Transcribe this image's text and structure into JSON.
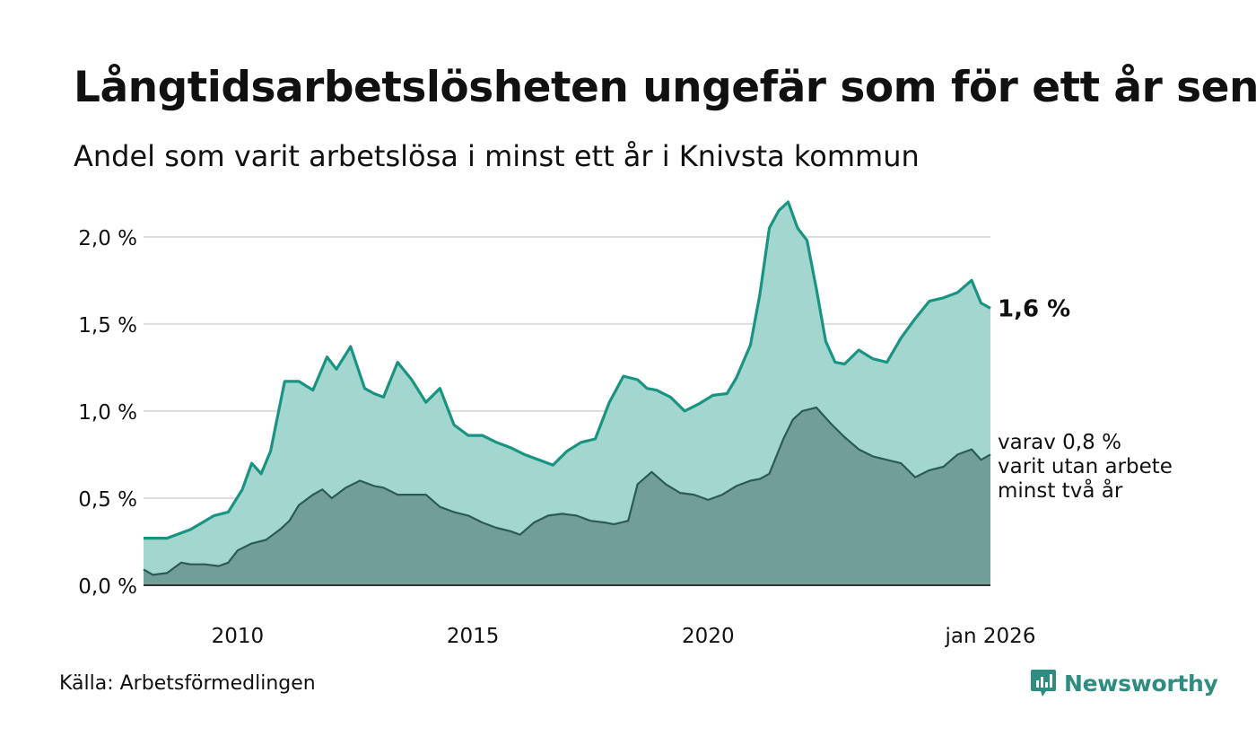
{
  "title": "Långtidsarbetslösheten ungefär som för ett år sen",
  "subtitle": "Andel som varit arbetslösa i minst ett år i Knivsta kommun",
  "source": "Källa: Arbetsförmedlingen",
  "brand": {
    "name": "Newsworthy",
    "icon": "newsworthy-logo-icon",
    "color": "#2f8c80"
  },
  "colors": {
    "series1_line": "#1a9482",
    "series1_fill": "#a3d6cf",
    "series2_line": "#2a5c55",
    "series2_fill": "#719f97",
    "grid": "#dddddd",
    "axis": "#333333"
  },
  "chart_data": {
    "type": "area",
    "title": "Långtidsarbetslösheten ungefär som för ett år sen",
    "xlabel": "",
    "ylabel": "",
    "ylim": [
      0,
      2.2
    ],
    "xlim": [
      2008.0,
      2026.0
    ],
    "grid": true,
    "y_ticks": [
      {
        "value": 0.0,
        "label": "0,0 %"
      },
      {
        "value": 0.5,
        "label": "0,5 %"
      },
      {
        "value": 1.0,
        "label": "1,0 %"
      },
      {
        "value": 1.5,
        "label": "1,5 %"
      },
      {
        "value": 2.0,
        "label": "2,0 %"
      }
    ],
    "x_ticks": [
      {
        "value": 2010,
        "label": "2010"
      },
      {
        "value": 2015,
        "label": "2015"
      },
      {
        "value": 2020,
        "label": "2020"
      },
      {
        "value": 2026,
        "label": "jan 2026"
      }
    ],
    "end_label": "1,6 %",
    "end_annotation": [
      "varav 0,8 %",
      "varit utan arbete",
      "minst två år"
    ],
    "series": [
      {
        "name": "Arbetslösa minst ett år",
        "x": [
          2008.0,
          2008.5,
          2009.0,
          2009.5,
          2009.8,
          2010.1,
          2010.3,
          2010.5,
          2010.7,
          2011.0,
          2011.3,
          2011.6,
          2011.9,
          2012.1,
          2012.4,
          2012.7,
          2012.9,
          2013.1,
          2013.4,
          2013.7,
          2014.0,
          2014.3,
          2014.6,
          2014.9,
          2015.2,
          2015.5,
          2015.8,
          2016.1,
          2016.4,
          2016.7,
          2017.0,
          2017.3,
          2017.6,
          2017.9,
          2018.2,
          2018.5,
          2018.7,
          2018.9,
          2019.2,
          2019.5,
          2019.8,
          2020.1,
          2020.4,
          2020.6,
          2020.9,
          2021.1,
          2021.3,
          2021.5,
          2021.7,
          2021.9,
          2022.1,
          2022.3,
          2022.5,
          2022.7,
          2022.9,
          2023.2,
          2023.5,
          2023.8,
          2024.1,
          2024.4,
          2024.7,
          2025.0,
          2025.3,
          2025.6,
          2025.8,
          2026.0
        ],
        "values": [
          0.27,
          0.27,
          0.32,
          0.4,
          0.42,
          0.55,
          0.7,
          0.64,
          0.77,
          1.17,
          1.17,
          1.12,
          1.31,
          1.24,
          1.37,
          1.13,
          1.1,
          1.08,
          1.28,
          1.18,
          1.05,
          1.13,
          0.92,
          0.86,
          0.86,
          0.82,
          0.79,
          0.75,
          0.72,
          0.69,
          0.77,
          0.82,
          0.84,
          1.05,
          1.2,
          1.18,
          1.13,
          1.12,
          1.08,
          1.0,
          1.04,
          1.09,
          1.1,
          1.19,
          1.38,
          1.67,
          2.05,
          2.15,
          2.2,
          2.05,
          1.98,
          1.7,
          1.4,
          1.28,
          1.27,
          1.35,
          1.3,
          1.28,
          1.42,
          1.53,
          1.63,
          1.65,
          1.68,
          1.75,
          1.62,
          1.59
        ]
      },
      {
        "name": "varav utan arbete minst två år",
        "x": [
          2008.0,
          2008.2,
          2008.5,
          2008.8,
          2009.0,
          2009.3,
          2009.6,
          2009.8,
          2010.0,
          2010.3,
          2010.6,
          2010.9,
          2011.1,
          2011.3,
          2011.6,
          2011.8,
          2012.0,
          2012.3,
          2012.6,
          2012.9,
          2013.1,
          2013.4,
          2013.7,
          2014.0,
          2014.3,
          2014.6,
          2014.9,
          2015.2,
          2015.5,
          2015.8,
          2016.0,
          2016.3,
          2016.6,
          2016.9,
          2017.2,
          2017.5,
          2017.8,
          2018.0,
          2018.3,
          2018.5,
          2018.8,
          2019.1,
          2019.4,
          2019.7,
          2020.0,
          2020.3,
          2020.6,
          2020.9,
          2021.1,
          2021.3,
          2021.6,
          2021.8,
          2022.0,
          2022.3,
          2022.6,
          2022.9,
          2023.2,
          2023.5,
          2023.8,
          2024.1,
          2024.4,
          2024.7,
          2025.0,
          2025.3,
          2025.6,
          2025.8,
          2026.0
        ],
        "values": [
          0.09,
          0.06,
          0.07,
          0.13,
          0.12,
          0.12,
          0.11,
          0.13,
          0.2,
          0.24,
          0.26,
          0.32,
          0.37,
          0.46,
          0.52,
          0.55,
          0.5,
          0.56,
          0.6,
          0.57,
          0.56,
          0.52,
          0.52,
          0.52,
          0.45,
          0.42,
          0.4,
          0.36,
          0.33,
          0.31,
          0.29,
          0.36,
          0.4,
          0.41,
          0.4,
          0.37,
          0.36,
          0.35,
          0.37,
          0.58,
          0.65,
          0.58,
          0.53,
          0.52,
          0.49,
          0.52,
          0.57,
          0.6,
          0.61,
          0.64,
          0.84,
          0.95,
          1.0,
          1.02,
          0.93,
          0.85,
          0.78,
          0.74,
          0.72,
          0.7,
          0.62,
          0.66,
          0.68,
          0.75,
          0.78,
          0.72,
          0.75
        ]
      }
    ]
  }
}
